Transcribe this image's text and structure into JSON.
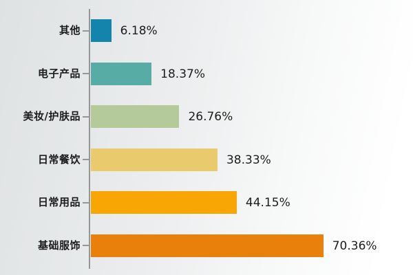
{
  "chart_data": {
    "type": "bar",
    "orientation": "horizontal",
    "title": "",
    "xlabel": "",
    "ylabel": "",
    "grid": false,
    "legend": "none",
    "xlim": [
      0,
      97
    ],
    "categories": [
      "其他",
      "电子产品",
      "美妆/护肤品",
      "日常餐饮",
      "日常用品",
      "基础服饰"
    ],
    "values": [
      6.18,
      18.37,
      26.76,
      38.33,
      44.15,
      70.36
    ],
    "value_labels": [
      "6.18%",
      "18.37%",
      "26.76%",
      "38.33%",
      "44.15%",
      "70.36%"
    ],
    "bar_colors": [
      "#1484ad",
      "#57ada6",
      "#b5ca9b",
      "#e9ca6d",
      "#f7a603",
      "#e9800b"
    ],
    "axis_line_color": "#949796",
    "tick_color": "#949796",
    "label_color": "#1c1c1c",
    "value_color": "#1c1c1c",
    "background_left": "#dfe2e3",
    "background_right": "#ffffff"
  }
}
